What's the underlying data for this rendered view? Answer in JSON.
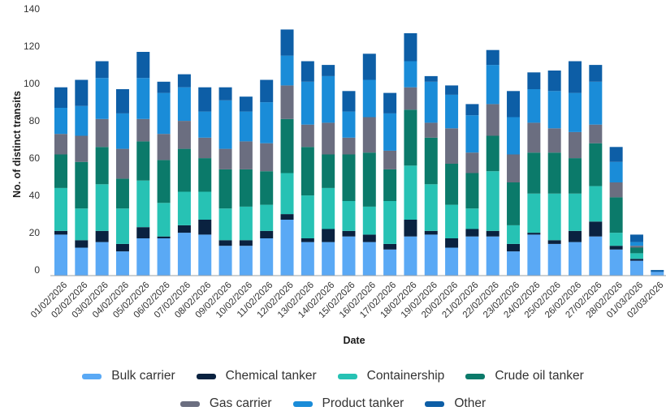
{
  "chart_data": {
    "type": "bar",
    "stacked": true,
    "xlabel": "Date",
    "ylabel": "No. of distinct transits",
    "ylim": [
      0,
      140
    ],
    "yticks": [
      0,
      20,
      40,
      60,
      80,
      100,
      120,
      140
    ],
    "grid": false,
    "legend_position": "bottom",
    "categories": [
      "01/02/2026",
      "02/02/2026",
      "03/02/2026",
      "04/02/2026",
      "05/02/2026",
      "06/02/2026",
      "07/02/2026",
      "08/02/2026",
      "09/02/2026",
      "10/02/2026",
      "11/02/2026",
      "12/02/2026",
      "13/02/2026",
      "14/02/2026",
      "15/02/2026",
      "16/02/2026",
      "17/02/2026",
      "18/02/2026",
      "19/02/2026",
      "20/02/2026",
      "21/02/2026",
      "22/02/2026",
      "23/02/2026",
      "24/02/2026",
      "25/02/2026",
      "26/02/2026",
      "27/02/2026",
      "28/02/2026",
      "01/03/2026",
      "02/03/2026"
    ],
    "series": [
      {
        "name": "Bulk carrier",
        "color": "#5aa9f5",
        "values": [
          22,
          15,
          18,
          13,
          20,
          20,
          23,
          22,
          16,
          16,
          20,
          30,
          18,
          18,
          21,
          18,
          14,
          21,
          22,
          15,
          21,
          21,
          13,
          22,
          17,
          18,
          21,
          14,
          8,
          2
        ]
      },
      {
        "name": "Chemical tanker",
        "color": "#0a2240",
        "values": [
          2,
          4,
          6,
          4,
          6,
          1,
          4,
          8,
          3,
          3,
          4,
          3,
          2,
          7,
          3,
          4,
          3,
          9,
          2,
          5,
          4,
          3,
          4,
          1,
          2,
          6,
          8,
          2,
          1,
          0
        ]
      },
      {
        "name": "Containership",
        "color": "#27c2b4",
        "values": [
          23,
          17,
          25,
          19,
          25,
          18,
          18,
          15,
          17,
          18,
          14,
          22,
          23,
          22,
          16,
          15,
          23,
          29,
          25,
          18,
          11,
          32,
          10,
          21,
          25,
          20,
          19,
          7,
          3,
          0
        ]
      },
      {
        "name": "Crude oil tanker",
        "color": "#0b7a6a",
        "values": [
          18,
          25,
          20,
          16,
          21,
          23,
          23,
          18,
          21,
          20,
          18,
          29,
          26,
          18,
          25,
          29,
          17,
          30,
          25,
          22,
          19,
          19,
          23,
          22,
          22,
          19,
          23,
          19,
          3,
          0
        ]
      },
      {
        "name": "Gas carrier",
        "color": "#6b6e80",
        "values": [
          11,
          14,
          15,
          16,
          12,
          14,
          15,
          11,
          11,
          15,
          15,
          18,
          12,
          17,
          9,
          19,
          10,
          12,
          8,
          19,
          11,
          17,
          15,
          16,
          13,
          14,
          10,
          8,
          1,
          0
        ]
      },
      {
        "name": "Product tanker",
        "color": "#1a8cd8",
        "values": [
          14,
          16,
          22,
          19,
          22,
          22,
          18,
          14,
          26,
          16,
          22,
          16,
          23,
          25,
          14,
          20,
          20,
          14,
          22,
          18,
          20,
          21,
          20,
          18,
          20,
          21,
          23,
          11,
          2,
          0
        ]
      },
      {
        "name": "Other",
        "color": "#0d5ea6",
        "values": [
          11,
          14,
          9,
          13,
          14,
          6,
          7,
          13,
          7,
          8,
          12,
          14,
          11,
          6,
          11,
          14,
          11,
          15,
          3,
          5,
          6,
          8,
          14,
          9,
          11,
          17,
          9,
          8,
          4,
          1
        ]
      }
    ]
  },
  "legend": {
    "row1": [
      "Bulk carrier",
      "Chemical tanker",
      "Containership",
      "Crude oil tanker"
    ],
    "row2": [
      "Gas carrier",
      "Product tanker",
      "Other"
    ]
  }
}
